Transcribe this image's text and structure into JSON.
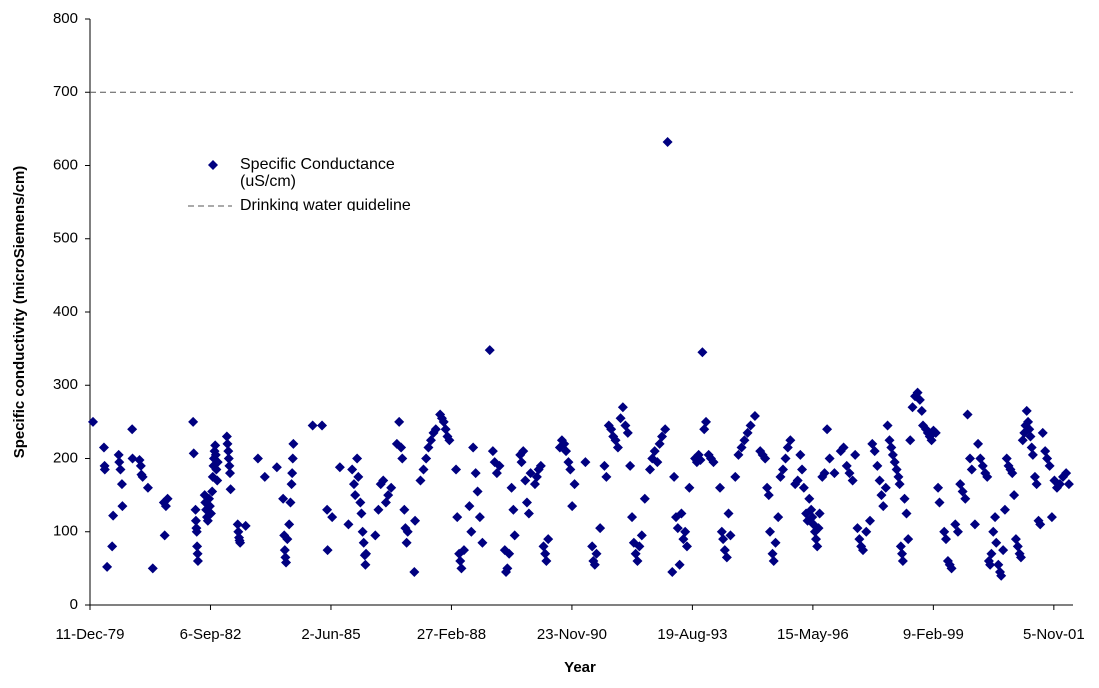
{
  "chart_data": {
    "type": "scatter",
    "x_label": "Year",
    "y_label": "Specific conductivity (microSiemens/cm)",
    "xlim": [
      "1979-12-11",
      "2002-04-13"
    ],
    "xticks": [
      {
        "value": "1979-12-11",
        "label": "11-Dec-79"
      },
      {
        "value": "1982-09-06",
        "label": "6-Sep-82"
      },
      {
        "value": "1985-06-02",
        "label": "2-Jun-85"
      },
      {
        "value": "1988-02-27",
        "label": "27-Feb-88"
      },
      {
        "value": "1990-11-23",
        "label": "23-Nov-90"
      },
      {
        "value": "1993-08-19",
        "label": "19-Aug-93"
      },
      {
        "value": "1996-05-15",
        "label": "15-May-96"
      },
      {
        "value": "1999-02-09",
        "label": "9-Feb-99"
      },
      {
        "value": "2001-11-05",
        "label": "5-Nov-01"
      }
    ],
    "ylim": [
      0,
      800
    ],
    "yticks": [
      0,
      100,
      200,
      300,
      400,
      500,
      600,
      700,
      800
    ],
    "grid": false,
    "legend": "upper left",
    "guideline": {
      "name": "Drinking water guideline",
      "value": 700,
      "color": "#555555"
    },
    "series": [
      {
        "name": "Specific Conductance (uS/cm)",
        "color": "#000080",
        "x": [
          "1980-01-05",
          "1980-04-05",
          "1980-04-10",
          "1980-04-12",
          "1980-05-01",
          "1980-06-12",
          "1980-06-20",
          "1980-08-05",
          "1980-08-10",
          "1980-08-20",
          "1980-09-01",
          "1980-09-05",
          "1980-11-25",
          "1980-11-28",
          "1981-01-25",
          "1981-02-05",
          "1981-02-10",
          "1981-02-20",
          "1981-04-05",
          "1981-05-15",
          "1981-08-15",
          "1981-08-22",
          "1981-09-01",
          "1981-09-15",
          "1982-04-15",
          "1982-04-20",
          "1982-05-05",
          "1982-05-08",
          "1982-05-12",
          "1982-05-15",
          "1982-05-18",
          "1982-05-22",
          "1982-05-25",
          "1982-07-20",
          "1982-07-25",
          "1982-08-01",
          "1982-08-08",
          "1982-08-15",
          "1982-08-25",
          "1982-09-01",
          "1982-09-10",
          "1982-09-20",
          "1982-09-25",
          "1982-10-01",
          "1982-10-05",
          "1982-10-10",
          "1982-10-15",
          "1982-10-20",
          "1982-10-25",
          "1982-11-01",
          "1982-11-05",
          "1983-01-20",
          "1983-01-25",
          "1983-02-01",
          "1983-02-05",
          "1983-02-10",
          "1983-02-15",
          "1983-02-20",
          "1983-04-20",
          "1983-04-25",
          "1983-05-01",
          "1983-05-05",
          "1983-05-10",
          "1983-06-25",
          "1983-10-05",
          "1983-12-01",
          "1984-03-10",
          "1984-05-01",
          "1984-05-10",
          "1984-05-15",
          "1984-05-20",
          "1984-05-25",
          "1984-06-05",
          "1984-06-20",
          "1984-07-01",
          "1984-07-10",
          "1984-07-15",
          "1984-07-20",
          "1984-07-25",
          "1985-01-01",
          "1985-03-20",
          "1985-05-01",
          "1985-05-05",
          "1985-06-12",
          "1985-08-15",
          "1985-10-25",
          "1985-11-25",
          "1985-12-10",
          "1985-12-20",
          "1986-01-05",
          "1986-01-15",
          "1986-02-01",
          "1986-02-10",
          "1986-02-20",
          "1986-03-01",
          "1986-03-10",
          "1986-03-15",
          "1986-03-20",
          "1986-06-05",
          "1986-07-01",
          "1986-07-20",
          "1986-08-10",
          "1986-09-01",
          "1986-09-20",
          "1986-10-15",
          "1986-12-01",
          "1986-12-20",
          "1987-01-05",
          "1987-01-15",
          "1987-02-01",
          "1987-02-10",
          "1987-02-20",
          "1987-03-01",
          "1987-04-25",
          "1987-05-01",
          "1987-06-15",
          "1987-07-10",
          "1987-08-01",
          "1987-08-20",
          "1987-09-10",
          "1987-10-01",
          "1987-10-20",
          "1987-11-25",
          "1987-12-10",
          "1987-12-25",
          "1988-01-10",
          "1988-01-25",
          "1988-02-10",
          "1988-04-05",
          "1988-04-15",
          "1988-05-01",
          "1988-05-10",
          "1988-05-20",
          "1988-06-10",
          "1988-07-25",
          "1988-08-10",
          "1988-08-25",
          "1988-09-15",
          "1988-10-01",
          "1988-10-20",
          "1988-11-10",
          "1989-01-10",
          "1989-02-05",
          "1989-02-20",
          "1989-03-10",
          "1989-04-01",
          "1989-05-15",
          "1989-05-25",
          "1989-06-05",
          "1989-06-20",
          "1989-07-10",
          "1989-07-25",
          "1989-08-05",
          "1989-09-20",
          "1989-10-01",
          "1989-10-15",
          "1989-11-01",
          "1989-11-15",
          "1989-12-01",
          "1989-12-15",
          "1990-01-20",
          "1990-02-05",
          "1990-02-20",
          "1990-03-10",
          "1990-04-01",
          "1990-04-15",
          "1990-04-25",
          "1990-05-10",
          "1990-08-15",
          "1990-09-01",
          "1990-09-20",
          "1990-10-05",
          "1990-10-25",
          "1990-11-10",
          "1990-11-25",
          "1990-12-15",
          "1991-03-15",
          "1991-05-10",
          "1991-05-20",
          "1991-06-01",
          "1991-06-15",
          "1991-07-15",
          "1991-08-20",
          "1991-09-05",
          "1991-09-25",
          "1991-10-15",
          "1991-11-01",
          "1991-11-20",
          "1991-12-10",
          "1992-01-01",
          "1992-01-20",
          "1992-02-10",
          "1992-03-01",
          "1992-03-20",
          "1992-04-05",
          "1992-04-20",
          "1992-05-05",
          "1992-05-20",
          "1992-06-05",
          "1992-06-25",
          "1992-07-20",
          "1992-09-01",
          "1992-09-20",
          "1992-10-10",
          "1992-11-01",
          "1992-11-20",
          "1992-12-10",
          "1993-01-05",
          "1993-01-25",
          "1993-03-05",
          "1993-03-20",
          "1993-04-05",
          "1993-04-20",
          "1993-05-05",
          "1993-05-20",
          "1993-06-05",
          "1993-06-20",
          "1993-07-05",
          "1993-07-25",
          "1993-09-10",
          "1993-09-25",
          "1993-10-10",
          "1993-10-25",
          "1993-11-10",
          "1993-11-25",
          "1993-12-10",
          "1994-01-01",
          "1994-01-20",
          "1994-02-10",
          "1994-04-05",
          "1994-04-20",
          "1994-05-01",
          "1994-05-15",
          "1994-06-01",
          "1994-06-15",
          "1994-07-01",
          "1994-08-10",
          "1994-09-05",
          "1994-10-01",
          "1994-10-25",
          "1994-11-20",
          "1994-12-15",
          "1995-01-20",
          "1995-03-05",
          "1995-03-25",
          "1995-04-15",
          "1995-05-01",
          "1995-05-15",
          "1995-05-25",
          "1995-06-15",
          "1995-06-25",
          "1995-07-10",
          "1995-08-01",
          "1995-08-20",
          "1995-09-10",
          "1995-10-01",
          "1995-10-20",
          "1995-11-10",
          "1995-12-20",
          "1996-01-10",
          "1996-02-01",
          "1996-02-15",
          "1996-03-01",
          "1996-03-20",
          "1996-04-01",
          "1996-04-15",
          "1996-05-01",
          "1996-05-10",
          "1996-05-20",
          "1996-06-01",
          "1996-06-10",
          "1996-06-20",
          "1996-07-01",
          "1996-07-10",
          "1996-08-01",
          "1996-08-20",
          "1996-09-10",
          "1996-10-01",
          "1996-11-10",
          "1997-01-01",
          "1997-01-25",
          "1997-02-20",
          "1997-03-15",
          "1997-04-10",
          "1997-05-01",
          "1997-05-20",
          "1997-06-05",
          "1997-06-20",
          "1997-07-05",
          "1997-08-01",
          "1997-09-01",
          "1997-09-20",
          "1997-10-10",
          "1997-11-01",
          "1997-11-20",
          "1997-12-05",
          "1997-12-20",
          "1998-01-10",
          "1998-01-25",
          "1998-02-10",
          "1998-02-25",
          "1998-03-10",
          "1998-03-25",
          "1998-04-10",
          "1998-04-25",
          "1998-05-05",
          "1998-05-15",
          "1998-05-25",
          "1998-06-01",
          "1998-06-15",
          "1998-07-01",
          "1998-07-15",
          "1998-08-01",
          "1998-08-20",
          "1998-09-10",
          "1998-10-01",
          "1998-10-20",
          "1998-11-05",
          "1998-11-15",
          "1998-12-10",
          "1998-12-25",
          "1999-01-10",
          "1999-01-25",
          "1999-02-10",
          "1999-03-01",
          "1999-03-20",
          "1999-04-01",
          "1999-05-10",
          "1999-05-25",
          "1999-06-10",
          "1999-06-25",
          "1999-07-10",
          "1999-08-10",
          "1999-09-01",
          "1999-09-20",
          "1999-10-10",
          "1999-11-01",
          "1999-11-20",
          "1999-12-10",
          "1999-12-25",
          "2000-01-20",
          "2000-02-15",
          "2000-03-05",
          "2000-03-25",
          "2000-04-15",
          "2000-05-01",
          "2000-05-15",
          "2000-05-25",
          "2000-06-05",
          "2000-06-20",
          "2000-07-05",
          "2000-07-15",
          "2000-08-01",
          "2000-08-15",
          "2000-08-25",
          "2000-09-10",
          "2000-09-25",
          "2000-10-10",
          "2000-10-25",
          "2000-11-10",
          "2000-11-25",
          "2000-12-10",
          "2000-12-25",
          "2001-01-10",
          "2001-01-25",
          "2001-02-05",
          "2001-02-20",
          "2001-03-05",
          "2001-03-15",
          "2001-03-25",
          "2001-04-05",
          "2001-04-15",
          "2001-04-25",
          "2001-05-05",
          "2001-05-15",
          "2001-06-01",
          "2001-06-15",
          "2001-07-01",
          "2001-07-15",
          "2001-08-05",
          "2001-08-25",
          "2001-09-10",
          "2001-10-01",
          "2001-10-20",
          "2001-11-10",
          "2001-12-01",
          "2001-12-25",
          "2002-01-20",
          "2002-02-15",
          "2002-03-10"
        ],
        "values": [
          250,
          215,
          190,
          185,
          52,
          80,
          122,
          205,
          195,
          185,
          165,
          135,
          240,
          200,
          198,
          190,
          178,
          175,
          160,
          50,
          140,
          95,
          135,
          145,
          250,
          207,
          130,
          115,
          105,
          100,
          80,
          70,
          60,
          150,
          140,
          130,
          120,
          115,
          145,
          135,
          125,
          155,
          175,
          190,
          200,
          210,
          218,
          205,
          185,
          170,
          195,
          230,
          220,
          210,
          200,
          190,
          180,
          158,
          110,
          100,
          92,
          88,
          85,
          108,
          200,
          175,
          188,
          145,
          95,
          75,
          65,
          58,
          90,
          110,
          140,
          165,
          180,
          200,
          220,
          245,
          245,
          130,
          75,
          120,
          188,
          110,
          185,
          165,
          150,
          200,
          175,
          140,
          125,
          100,
          85,
          68,
          55,
          70,
          95,
          130,
          165,
          170,
          140,
          150,
          160,
          220,
          250,
          215,
          200,
          130,
          105,
          85,
          100,
          45,
          115,
          170,
          185,
          200,
          215,
          225,
          235,
          240,
          260,
          255,
          250,
          240,
          230,
          225,
          185,
          120,
          70,
          60,
          50,
          75,
          135,
          100,
          215,
          180,
          155,
          120,
          85,
          348,
          210,
          195,
          180,
          190,
          75,
          45,
          50,
          70,
          160,
          130,
          95,
          205,
          195,
          210,
          170,
          140,
          125,
          180,
          165,
          175,
          185,
          190,
          80,
          70,
          60,
          90,
          215,
          225,
          220,
          210,
          195,
          185,
          135,
          165,
          195,
          80,
          60,
          55,
          70,
          105,
          190,
          175,
          245,
          240,
          230,
          225,
          215,
          255,
          270,
          245,
          235,
          190,
          120,
          85,
          70,
          60,
          80,
          95,
          145,
          185,
          200,
          210,
          195,
          220,
          230,
          240,
          632,
          45,
          175,
          120,
          105,
          55,
          125,
          90,
          100,
          80,
          160,
          200,
          195,
          205,
          198,
          345,
          240,
          250,
          205,
          200,
          195,
          160,
          100,
          90,
          75,
          65,
          125,
          95,
          175,
          205,
          215,
          225,
          235,
          245,
          258,
          210,
          205,
          200,
          160,
          150,
          100,
          70,
          60,
          85,
          120,
          175,
          185,
          200,
          215,
          225,
          165,
          170,
          205,
          185,
          160,
          125,
          115,
          145,
          130,
          120,
          110,
          100,
          90,
          80,
          105,
          125,
          175,
          180,
          240,
          200,
          180,
          210,
          215,
          190,
          180,
          170,
          205,
          105,
          90,
          80,
          75,
          100,
          115,
          220,
          210,
          190,
          170,
          150,
          135,
          160,
          245,
          225,
          215,
          205,
          195,
          185,
          175,
          165,
          80,
          70,
          60,
          145,
          125,
          90,
          225,
          270,
          285,
          290,
          280,
          265,
          245,
          240,
          235,
          230,
          225,
          238,
          235,
          160,
          140,
          100,
          90,
          60,
          55,
          50,
          110,
          100,
          165,
          155,
          145,
          260,
          200,
          185,
          110,
          220,
          200,
          190,
          180,
          175,
          60,
          55,
          70,
          100,
          120,
          85,
          55,
          45,
          40,
          75,
          130,
          200,
          190,
          185,
          180,
          150,
          90,
          80,
          70,
          65,
          225,
          235,
          245,
          265,
          250,
          240,
          230,
          215,
          205,
          175,
          165,
          115,
          110,
          235,
          210,
          200,
          190,
          120,
          170,
          160,
          165,
          175,
          180,
          165
        ]
      }
    ]
  }
}
